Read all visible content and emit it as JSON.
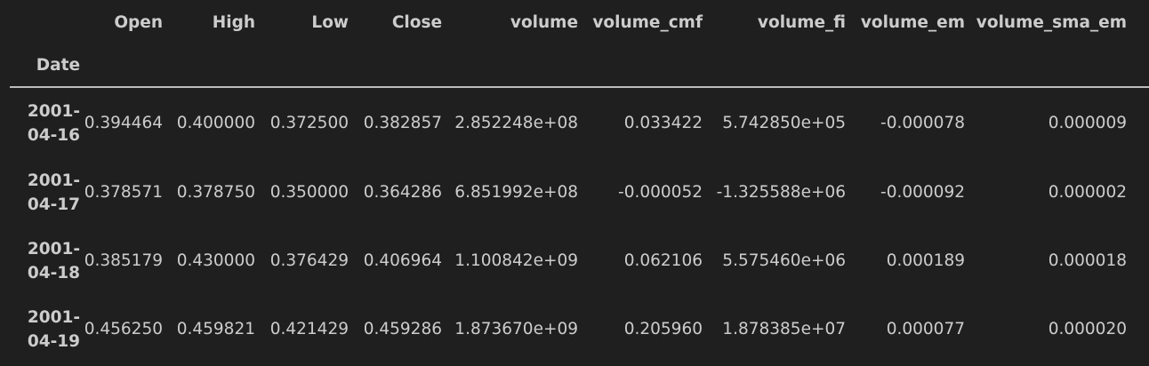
{
  "table": {
    "index_name": "Date",
    "columns": [
      "Open",
      "High",
      "Low",
      "Close",
      "volume",
      "volume_cmf",
      "volume_fi",
      "volume_em",
      "volume_sma_em"
    ],
    "rows": [
      {
        "date": "2001-\n04-16",
        "values": [
          "0.394464",
          "0.400000",
          "0.372500",
          "0.382857",
          "2.852248e+08",
          "0.033422",
          "5.742850e+05",
          "-0.000078",
          "0.000009"
        ]
      },
      {
        "date": "2001-\n04-17",
        "values": [
          "0.378571",
          "0.378750",
          "0.350000",
          "0.364286",
          "6.851992e+08",
          "-0.000052",
          "-1.325588e+06",
          "-0.000092",
          "0.000002"
        ]
      },
      {
        "date": "2001-\n04-18",
        "values": [
          "0.385179",
          "0.430000",
          "0.376429",
          "0.406964",
          "1.100842e+09",
          "0.062106",
          "5.575460e+06",
          "0.000189",
          "0.000018"
        ]
      },
      {
        "date": "2001-\n04-19",
        "values": [
          "0.456250",
          "0.459821",
          "0.421429",
          "0.459286",
          "1.873670e+09",
          "0.205960",
          "1.878385e+07",
          "0.000077",
          "0.000020"
        ]
      }
    ]
  }
}
